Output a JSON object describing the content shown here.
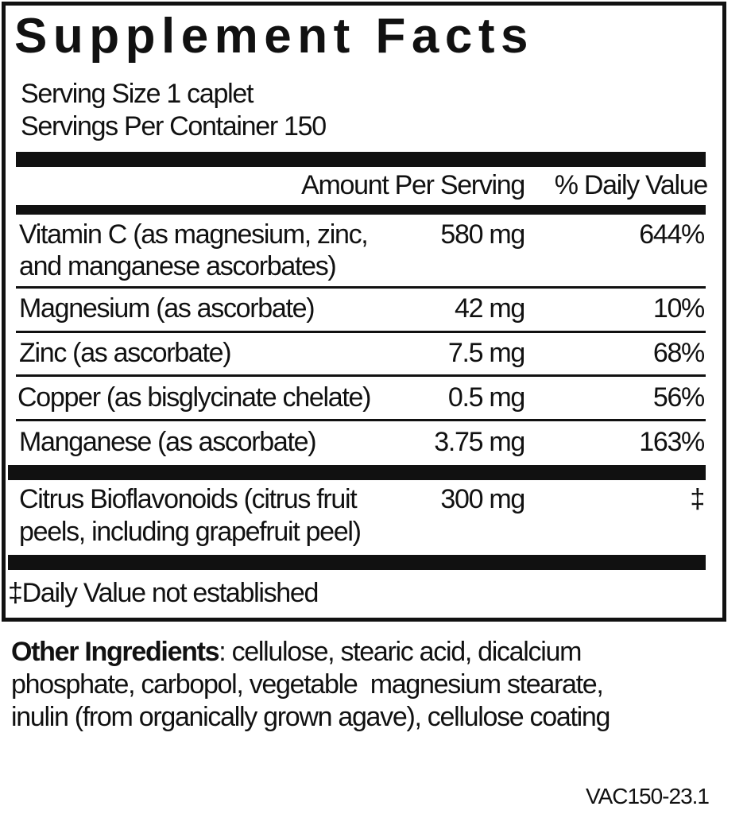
{
  "title": "Supplement Facts",
  "serving_size": "Serving Size 1 caplet",
  "servings_per_container": "Servings Per Container 150",
  "header": {
    "amount": "Amount Per Serving",
    "daily_value": "% Daily Value"
  },
  "rows": [
    {
      "name_line1": "Vitamin C (as magnesium, zinc,",
      "name_line2": "and manganese ascorbates)",
      "amount": "580 mg",
      "dv": "644%"
    },
    {
      "name_line1": "Magnesium (as ascorbate)",
      "amount": "42 mg",
      "dv": "10%"
    },
    {
      "name_line1": "Zinc (as ascorbate)",
      "amount": "7.5 mg",
      "dv": "68%"
    },
    {
      "name_line1": "Copper (as bisglycinate chelate)",
      "amount": "0.5 mg",
      "dv": "56%"
    },
    {
      "name_line1": "Manganese (as ascorbate)",
      "amount": "3.75 mg",
      "dv": "163%"
    },
    {
      "name_line1": "Citrus Bioflavonoids (citrus fruit",
      "name_line2": "peels, including grapefruit peel)",
      "amount": "300 mg",
      "dv": "‡"
    }
  ],
  "footnote": "‡Daily Value not established",
  "other_ingredients": {
    "label": "Other Ingredients",
    "line1": ": cellulose, stearic acid, dicalcium",
    "line2": "phosphate, carbopol, vegetable  magnesium stearate,",
    "line3": "inulin (from organically grown agave), cellulose coating"
  },
  "code": "VAC150-23.1"
}
